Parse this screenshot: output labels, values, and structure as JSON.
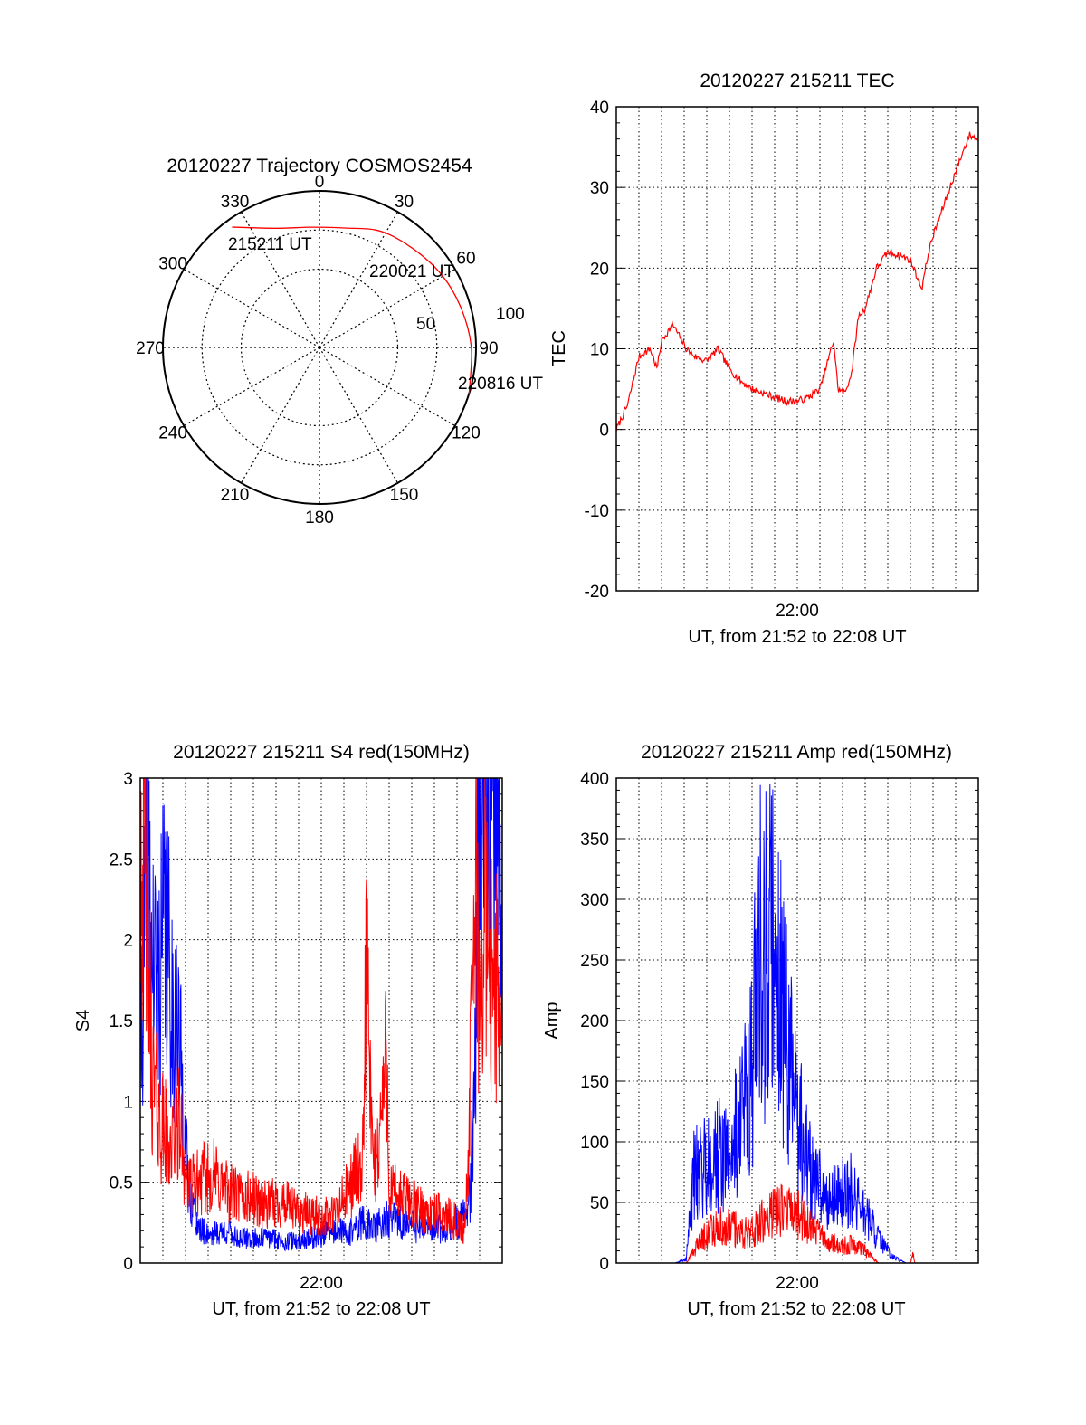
{
  "colors": {
    "red": "#ff0000",
    "blue": "#0000ff",
    "frame": "#000000",
    "grid": "#000000"
  },
  "polar": {
    "title": "20120227 Trajectory COSMOS2454",
    "azimuth_labels": [
      "0",
      "30",
      "60",
      "90",
      "120",
      "150",
      "180",
      "210",
      "240",
      "270",
      "300",
      "330"
    ],
    "ring_labels": [
      "50",
      "100"
    ],
    "trajectory": {
      "type": "line",
      "color": "red",
      "points": [
        {
          "az": 324,
          "zen": 95
        },
        {
          "az": 340,
          "zen": 81
        },
        {
          "az": 356,
          "zen": 77
        },
        {
          "az": 12,
          "zen": 78
        },
        {
          "az": 28,
          "zen": 84
        },
        {
          "az": 44,
          "zen": 87
        },
        {
          "az": 60,
          "zen": 91
        },
        {
          "az": 75,
          "zen": 94
        },
        {
          "az": 90,
          "zen": 97
        },
        {
          "az": 107,
          "zen": 100
        }
      ],
      "annotations": [
        {
          "text": "215211 UT",
          "az": 324,
          "zen": 95
        },
        {
          "text": "220021 UT",
          "az": 56,
          "zen": 89
        },
        {
          "text": "220816 UT",
          "az": 107,
          "zen": 100
        }
      ]
    }
  },
  "chart_data": [
    {
      "id": "tec",
      "type": "line",
      "title": "20120227 215211 TEC",
      "ylabel": "TEC",
      "xlabel": "UT, from 21:52 to 22:08 UT",
      "xlim_min": [
        21.8667,
        22.1333
      ],
      "ylim": [
        -20,
        40
      ],
      "yticks": [
        -20,
        -10,
        0,
        10,
        20,
        30,
        40
      ],
      "xticks": [
        {
          "value": 22.0,
          "label": "22:00"
        }
      ],
      "grid": true,
      "series": [
        {
          "color": "red",
          "x": [
            21.8667,
            21.875,
            21.8833,
            21.8917,
            21.8967,
            21.9,
            21.9083,
            21.915,
            21.9183,
            21.925,
            21.9333,
            21.9417,
            21.95,
            21.9583,
            21.9667,
            21.975,
            21.9833,
            21.9917,
            22.0,
            22.0083,
            22.0167,
            22.0267,
            22.03,
            22.035,
            22.04,
            22.045,
            22.05,
            22.0583,
            22.0667,
            22.0767,
            22.0833,
            22.0917,
            22.0967,
            22.1,
            22.1083,
            22.1167,
            22.1233,
            22.1267,
            22.1333
          ],
          "y": [
            0,
            3,
            9,
            10,
            7.5,
            11,
            13,
            11,
            10,
            9,
            8.5,
            10,
            7.5,
            6,
            5,
            4.5,
            4,
            3.5,
            3.5,
            4,
            5,
            11,
            5,
            4.5,
            7,
            14,
            15,
            20,
            22,
            21.5,
            21,
            17.5,
            22,
            24,
            28,
            32,
            35,
            36.5,
            36
          ]
        }
      ]
    },
    {
      "id": "s4",
      "type": "line",
      "title": "20120227 215211 S4 red(150MHz)",
      "ylabel": "S4",
      "xlabel": "UT, from 21:52 to 22:08 UT",
      "xlim_min": [
        21.8667,
        22.1333
      ],
      "ylim": [
        0,
        3
      ],
      "yticks": [
        0,
        0.5,
        1,
        1.5,
        2,
        2.5,
        3
      ],
      "xticks": [
        {
          "value": 22.0,
          "label": "22:00"
        }
      ],
      "grid": true,
      "series": [
        {
          "color": "blue",
          "x": [
            21.8667,
            21.8717,
            21.875,
            21.88,
            21.885,
            21.89,
            21.8933,
            21.8967,
            21.9017,
            21.91,
            21.92,
            21.93,
            21.94,
            21.95,
            21.96,
            21.97,
            21.98,
            21.99,
            22.0,
            22.01,
            22.02,
            22.03,
            22.04,
            22.05,
            22.06,
            22.07,
            22.08,
            22.09,
            22.1,
            22.1067,
            22.11,
            22.1133,
            22.115,
            22.1183,
            22.12,
            22.125,
            22.1333
          ],
          "y": [
            1.3,
            2.5,
            1.9,
            1.7,
            2.1,
            1.6,
            1.5,
            1.2,
            0.5,
            0.2,
            0.18,
            0.2,
            0.15,
            0.15,
            0.16,
            0.14,
            0.13,
            0.15,
            0.17,
            0.2,
            0.18,
            0.25,
            0.22,
            0.28,
            0.25,
            0.22,
            0.2,
            0.22,
            0.26,
            0.3,
            0.45,
            1.3,
            2.2,
            2.9,
            2.6,
            2.8,
            2.7
          ]
        },
        {
          "color": "red",
          "x": [
            21.8667,
            21.8717,
            21.875,
            21.88,
            21.885,
            21.89,
            21.8933,
            21.8967,
            21.9017,
            21.91,
            21.92,
            21.93,
            21.94,
            21.95,
            21.96,
            21.97,
            21.98,
            21.99,
            22.0,
            22.01,
            22.02,
            22.0267,
            22.03,
            22.0333,
            22.0367,
            22.04,
            22.0483,
            22.05,
            22.06,
            22.07,
            22.08,
            22.09,
            22.1,
            22.105,
            22.1083,
            22.11,
            22.1133,
            22.1167,
            22.12,
            22.125,
            22.1333
          ],
          "y": [
            2.8,
            2.2,
            1.2,
            0.9,
            0.8,
            0.7,
            0.9,
            0.8,
            0.45,
            0.5,
            0.55,
            0.45,
            0.4,
            0.4,
            0.35,
            0.38,
            0.32,
            0.3,
            0.28,
            0.3,
            0.45,
            0.6,
            0.4,
            2.0,
            0.8,
            0.55,
            1.3,
            0.45,
            0.4,
            0.35,
            0.3,
            0.3,
            0.25,
            0.2,
            0.6,
            1.2,
            2.5,
            1.6,
            2.2,
            1.8,
            1.6
          ]
        }
      ]
    },
    {
      "id": "amp",
      "type": "line",
      "title": "20120227 215211 Amp red(150MHz)",
      "ylabel": "Amp",
      "xlabel": "UT, from 21:52 to 22:08 UT",
      "xlim_min": [
        21.8667,
        22.1333
      ],
      "ylim": [
        0,
        400
      ],
      "yticks": [
        0,
        50,
        100,
        150,
        200,
        250,
        300,
        350,
        400
      ],
      "xticks": [
        {
          "value": 22.0,
          "label": "22:00"
        }
      ],
      "grid": true,
      "series": [
        {
          "color": "blue",
          "x": [
            21.8667,
            21.9,
            21.91,
            21.9183,
            21.9233,
            21.93,
            21.94,
            21.95,
            21.96,
            21.9667,
            21.9717,
            21.9783,
            21.9833,
            21.99,
            21.995,
            22.0,
            22.01,
            22.02,
            22.03,
            22.04,
            22.05,
            22.06,
            22.07,
            22.08,
            22.09,
            22.1,
            22.1333
          ],
          "y": [
            0,
            0,
            0,
            3,
            70,
            80,
            90,
            85,
            130,
            160,
            260,
            250,
            270,
            200,
            160,
            120,
            75,
            55,
            55,
            60,
            40,
            20,
            5,
            0,
            0,
            0,
            0
          ]
        },
        {
          "color": "red",
          "x": [
            21.8667,
            21.91,
            21.9183,
            21.9233,
            21.93,
            21.94,
            21.95,
            21.96,
            21.97,
            21.98,
            21.99,
            22.0,
            22.01,
            22.02,
            22.03,
            22.04,
            22.05,
            22.06,
            22.0833,
            22.085,
            22.0867,
            22.0883,
            22.1333
          ],
          "y": [
            0,
            0,
            0,
            10,
            20,
            30,
            30,
            25,
            30,
            40,
            45,
            40,
            30,
            20,
            15,
            15,
            10,
            0,
            0,
            8,
            0,
            0,
            0
          ]
        }
      ]
    }
  ]
}
